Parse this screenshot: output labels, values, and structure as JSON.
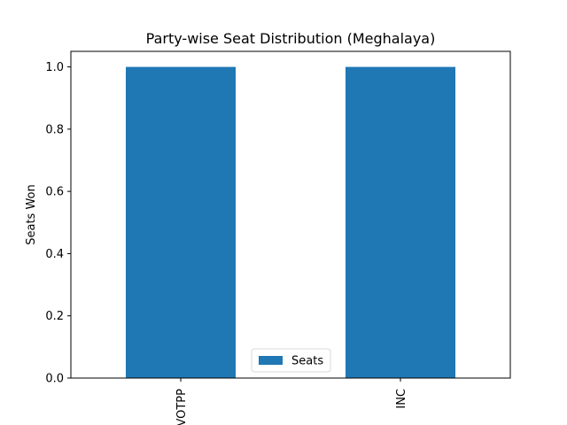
{
  "chart_data": {
    "type": "bar",
    "title": "Party-wise Seat Distribution (Meghalaya)",
    "xlabel": "",
    "ylabel": "Seats Won",
    "categories": [
      "VOTPP",
      "INC"
    ],
    "series": [
      {
        "name": "Seats",
        "values": [
          1,
          1
        ],
        "color": "#1f77b4"
      }
    ],
    "ylim": [
      0,
      1.05
    ],
    "yticks": [
      "0.0",
      "0.2",
      "0.4",
      "0.6",
      "0.8",
      "1.0"
    ],
    "grid": false,
    "legend_position": "bottom-center"
  }
}
